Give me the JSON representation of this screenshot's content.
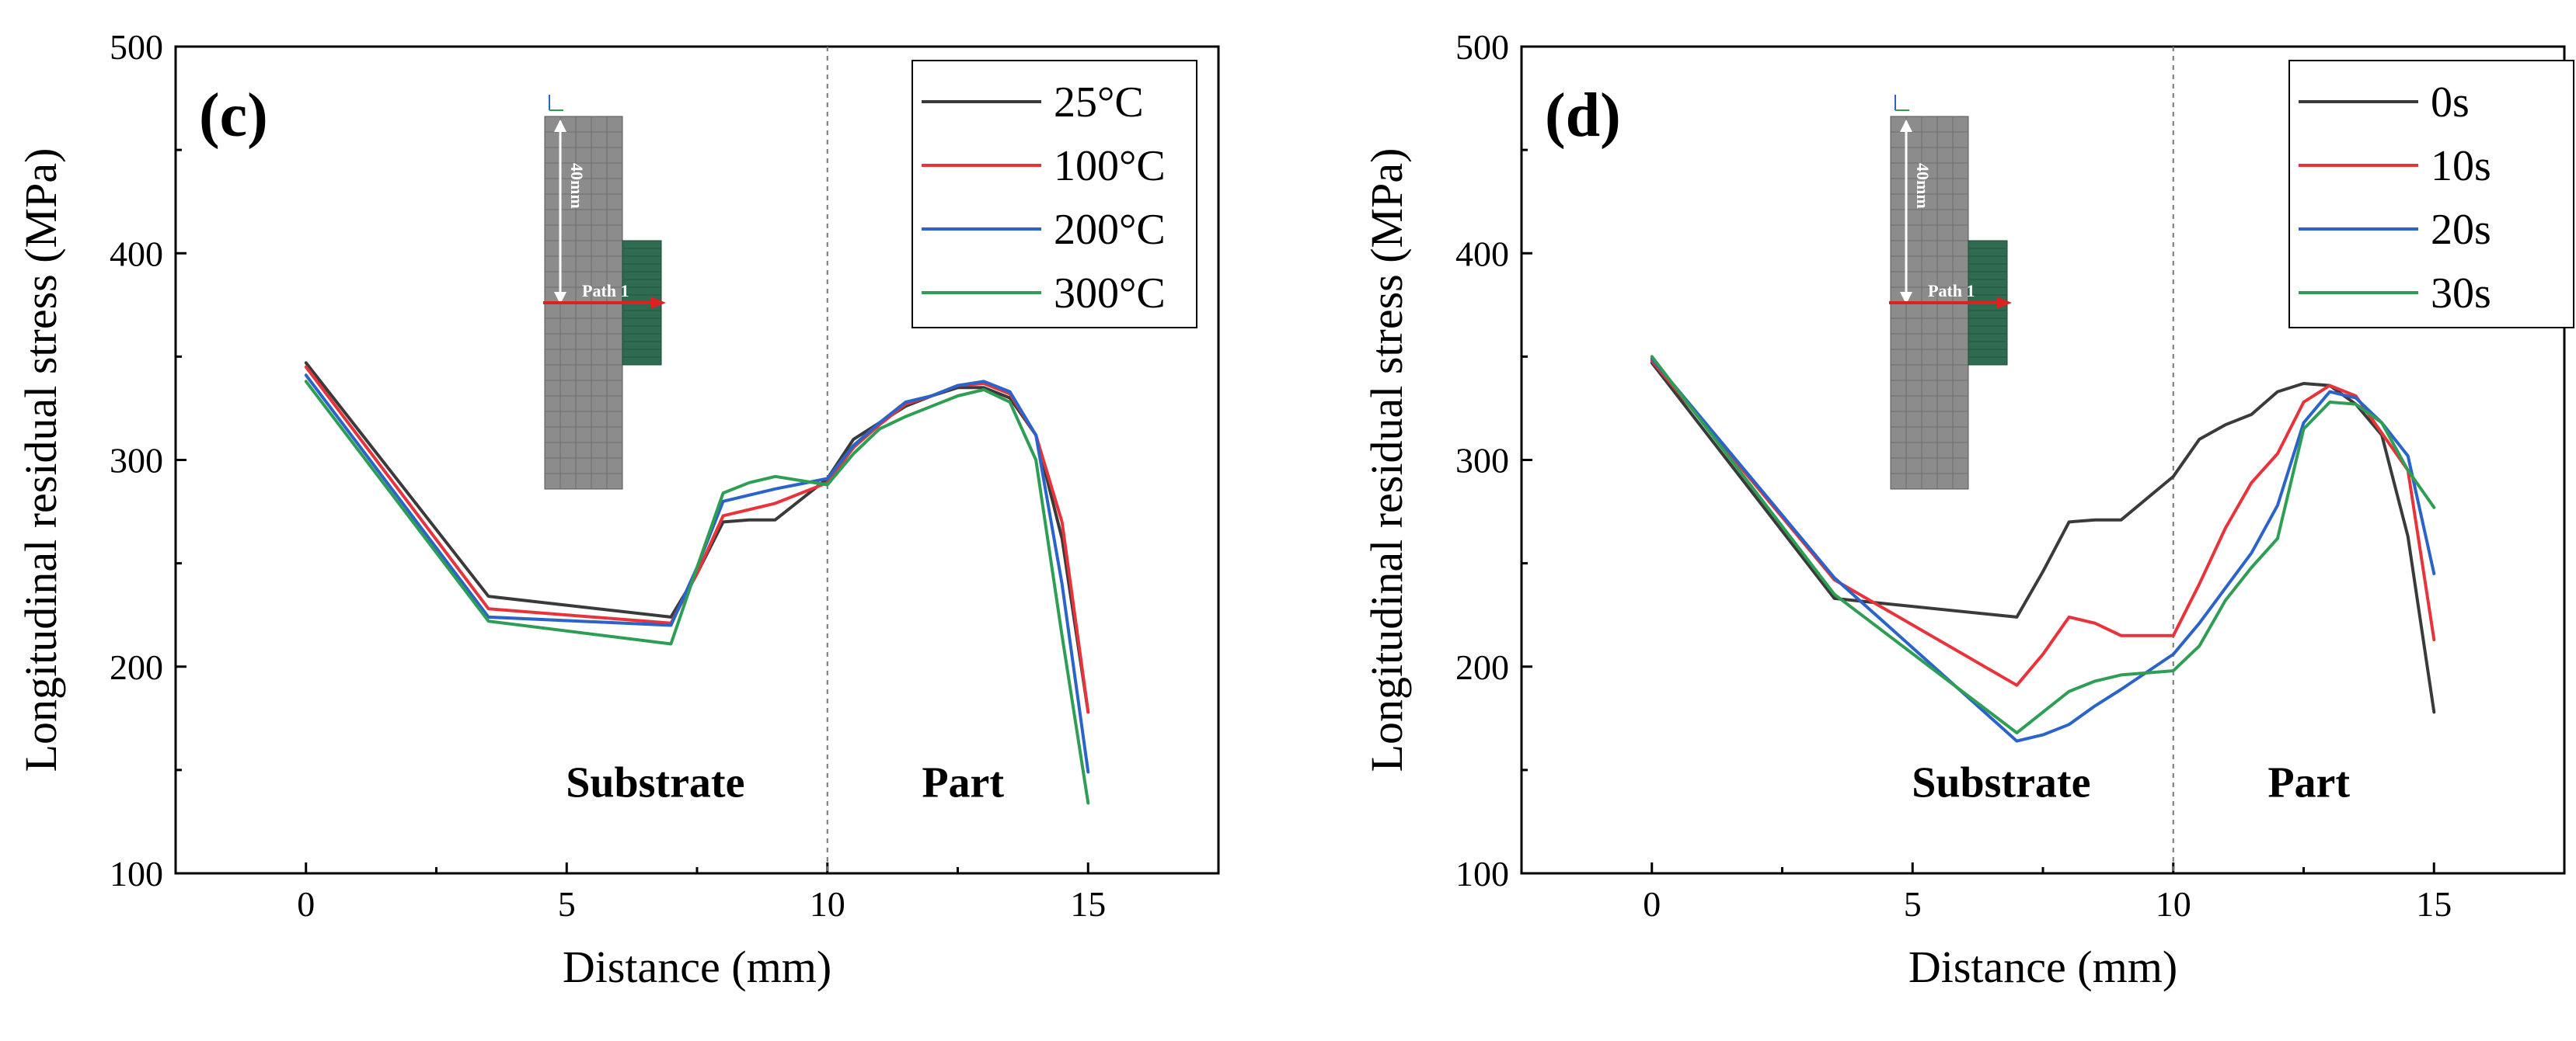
{
  "chart_data": [
    {
      "type": "line",
      "panel_label": "(c)",
      "xlabel": "Distance (mm)",
      "ylabel": "Longitudinal residual stress (MPa)",
      "xlim": [
        -2.5,
        17.5
      ],
      "ylim": [
        100,
        500
      ],
      "xticks": [
        0,
        5,
        10,
        15
      ],
      "yticks": [
        100,
        200,
        300,
        400,
        500
      ],
      "divider_x": 10,
      "regions": [
        {
          "label": "Substrate",
          "x": 6.7,
          "y": 137
        },
        {
          "label": "Part",
          "x": 12.6,
          "y": 137
        }
      ],
      "legend_position": "top-right",
      "inset": {
        "dimension_label": "40mm",
        "path_label": "Path 1"
      },
      "series": [
        {
          "name": "25°C",
          "color": "#3a3a3a",
          "x": [
            0,
            3.5,
            7,
            7.5,
            8,
            8.5,
            9,
            10,
            10.5,
            11,
            11.5,
            12,
            12.5,
            13,
            13.5,
            14,
            14.5,
            15
          ],
          "y": [
            347,
            234,
            224,
            245,
            270,
            271,
            271,
            291,
            310,
            318,
            326,
            331,
            335,
            335,
            330,
            312,
            262,
            178
          ]
        },
        {
          "name": "100°C",
          "color": "#e8333b",
          "x": [
            0,
            3.5,
            7,
            7.5,
            8,
            8.5,
            9,
            10,
            10.5,
            11,
            11.5,
            12,
            12.5,
            13,
            13.5,
            14,
            14.5,
            15
          ],
          "y": [
            345,
            228,
            221,
            245,
            273,
            276,
            279,
            289,
            306,
            317,
            327,
            331,
            336,
            337,
            332,
            312,
            270,
            178
          ]
        },
        {
          "name": "200°C",
          "color": "#2a63c9",
          "x": [
            0,
            3.5,
            7,
            7.5,
            8,
            8.5,
            9,
            10,
            10.5,
            11,
            11.5,
            12,
            12.5,
            13,
            13.5,
            14,
            14.5,
            15
          ],
          "y": [
            341,
            224,
            220,
            248,
            280,
            283,
            286,
            291,
            307,
            318,
            328,
            331,
            336,
            338,
            333,
            312,
            240,
            149
          ]
        },
        {
          "name": "300°C",
          "color": "#2f9e55",
          "x": [
            0,
            3.5,
            7,
            7.5,
            8,
            8.5,
            9,
            10,
            10.5,
            11,
            11.5,
            12,
            12.5,
            13,
            13.5,
            14,
            14.5,
            15
          ],
          "y": [
            338,
            222,
            211,
            248,
            284,
            289,
            292,
            288,
            303,
            315,
            321,
            326,
            331,
            334,
            328,
            300,
            215,
            134
          ]
        }
      ]
    },
    {
      "type": "line",
      "panel_label": "(d)",
      "xlabel": "Distance (mm)",
      "ylabel": "Longitudinal residual stress (MPa)",
      "xlim": [
        -2.5,
        17.5
      ],
      "ylim": [
        100,
        500
      ],
      "xticks": [
        0,
        5,
        10,
        15
      ],
      "yticks": [
        100,
        200,
        300,
        400,
        500
      ],
      "divider_x": 10,
      "regions": [
        {
          "label": "Substrate",
          "x": 6.7,
          "y": 137
        },
        {
          "label": "Part",
          "x": 12.6,
          "y": 137
        }
      ],
      "legend_position": "top-right",
      "inset": {
        "dimension_label": "40mm",
        "path_label": "Path 1"
      },
      "series": [
        {
          "name": "0s",
          "color": "#3a3a3a",
          "x": [
            0,
            3.5,
            7,
            7.5,
            8,
            8.5,
            9,
            10,
            10.5,
            11,
            11.5,
            12,
            12.5,
            13,
            13.5,
            14,
            14.5,
            15
          ],
          "y": [
            347,
            233,
            224,
            246,
            270,
            271,
            271,
            292,
            310,
            317,
            322,
            333,
            337,
            336,
            327,
            312,
            263,
            178
          ]
        },
        {
          "name": "10s",
          "color": "#e8333b",
          "x": [
            0,
            3.5,
            7,
            7.5,
            8,
            8.5,
            9,
            10,
            10.5,
            11,
            11.5,
            12,
            12.5,
            13,
            13.5,
            14,
            14.5,
            15
          ],
          "y": [
            348,
            242,
            191,
            206,
            224,
            221,
            215,
            215,
            240,
            267,
            289,
            303,
            328,
            336,
            331,
            313,
            295,
            213
          ]
        },
        {
          "name": "20s",
          "color": "#2a63c9",
          "x": [
            0,
            3.5,
            7,
            7.5,
            8,
            8.5,
            9,
            10,
            10.5,
            11,
            11.5,
            12,
            12.5,
            13,
            13.5,
            14,
            14.5,
            15
          ],
          "y": [
            349,
            243,
            164,
            167,
            172,
            181,
            189,
            206,
            221,
            238,
            255,
            278,
            318,
            333,
            330,
            318,
            302,
            245
          ]
        },
        {
          "name": "30s",
          "color": "#2f9e55",
          "x": [
            0,
            3.5,
            7,
            7.5,
            8,
            8.5,
            9,
            10,
            10.5,
            11,
            11.5,
            12,
            12.5,
            13,
            13.5,
            14,
            14.5,
            15
          ],
          "y": [
            350,
            235,
            168,
            178,
            188,
            193,
            196,
            198,
            210,
            232,
            248,
            262,
            315,
            328,
            327,
            318,
            295,
            277
          ]
        }
      ]
    }
  ]
}
